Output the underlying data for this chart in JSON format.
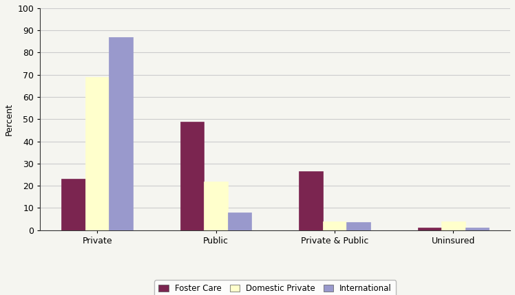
{
  "categories": [
    "Private",
    "Public",
    "Private & Public",
    "Uninsured"
  ],
  "series": {
    "Foster Care": [
      23,
      49,
      26.5,
      1
    ],
    "Domestic Private": [
      69,
      22,
      4,
      4
    ],
    "International": [
      87,
      8,
      3.5,
      1
    ]
  },
  "colors": {
    "Foster Care": "#7B2550",
    "Domestic Private": "#FFFFCC",
    "International": "#9999CC"
  },
  "legend_labels": [
    "Foster Care",
    "Domestic Private",
    "International"
  ],
  "ylabel": "Percent",
  "ylim": [
    0,
    100
  ],
  "yticks": [
    0,
    10,
    20,
    30,
    40,
    50,
    60,
    70,
    80,
    90,
    100
  ],
  "bar_width": 0.2,
  "background_color": "#f5f5f0",
  "plot_bg_color": "#f5f5f0",
  "grid_color": "#cccccc",
  "spine_color": "#333333"
}
